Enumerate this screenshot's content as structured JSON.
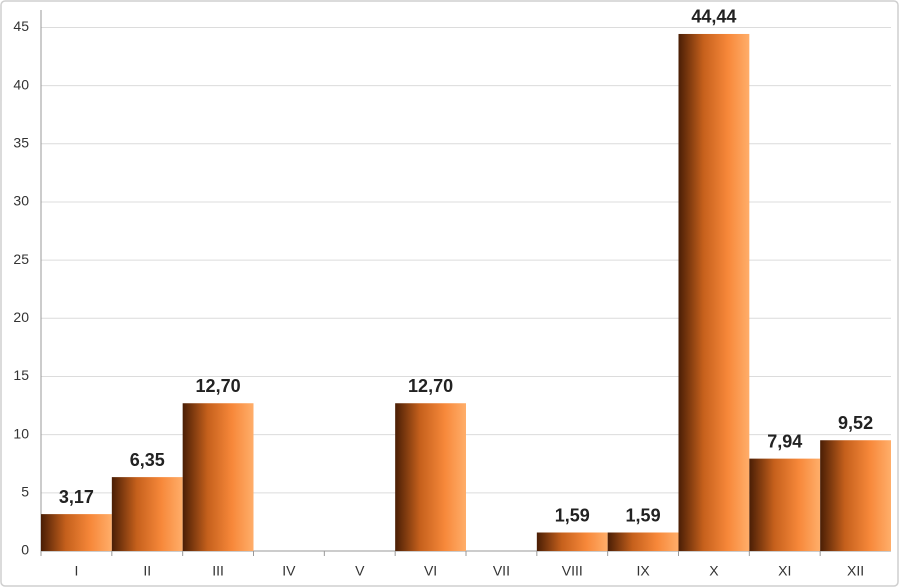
{
  "chart_data": {
    "type": "bar",
    "categories": [
      "I",
      "II",
      "III",
      "IV",
      "V",
      "VI",
      "VII",
      "VIII",
      "IX",
      "X",
      "XI",
      "XII"
    ],
    "values": [
      3.17,
      6.35,
      12.7,
      null,
      null,
      12.7,
      null,
      1.59,
      1.59,
      44.44,
      7.94,
      9.52
    ],
    "value_labels": [
      "3,17",
      "6,35",
      "12,70",
      null,
      null,
      "12,70",
      null,
      "1,59",
      "1,59",
      "44,44",
      "7,94",
      "9,52"
    ],
    "color": "#f7883a",
    "ylim": [
      0,
      46.5
    ],
    "yticks": [
      0,
      5,
      10,
      15,
      20,
      25,
      30,
      35,
      40,
      45
    ],
    "grid": true
  }
}
